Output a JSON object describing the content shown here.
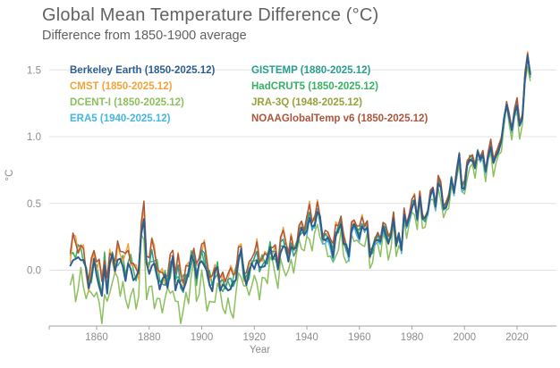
{
  "header": {
    "title": "Global Mean Temperature Difference (°C)",
    "subtitle": "Difference from 1850-1900 average"
  },
  "axes": {
    "xlabel": "Year",
    "ylabel": "°C",
    "ytick_labels": [
      "0.0",
      "0.5",
      "1.0",
      "1.5"
    ],
    "xtick_labels": [
      "1860",
      "1880",
      "1900",
      "1920",
      "1940",
      "1960",
      "1980",
      "2000",
      "2020"
    ]
  },
  "colors": {
    "title_gray": "#636363",
    "tick_gray": "#8c8c8c",
    "axis_line": "#a3a3a3",
    "gridline": "#e3e3e3",
    "background": "#ffffff"
  },
  "chart_data": {
    "type": "line",
    "title": "Global Mean Temperature Difference (°C)",
    "subtitle": "Difference from 1850-1900 average",
    "xlabel": "Year",
    "ylabel": "°C",
    "xlim": [
      1848,
      2028
    ],
    "ylim": [
      -0.42,
      1.68
    ],
    "yticks": [
      0.0,
      0.5,
      1.0,
      1.5
    ],
    "xticks": [
      1860,
      1880,
      1900,
      1920,
      1940,
      1960,
      1980,
      2000,
      2020
    ],
    "grid": "horizontal-only",
    "legend_position": "top-left-inside-two-columns",
    "x_start": 1850,
    "consensus_anomaly": [
      0.05,
      0.12,
      0.08,
      0.09,
      0.1,
      0.06,
      -0.03,
      -0.13,
      -0.05,
      0.06,
      -0.02,
      -0.08,
      -0.2,
      0.03,
      -0.15,
      0.03,
      0.08,
      0.0,
      0.08,
      0.06,
      0.05,
      -0.04,
      0.04,
      0.01,
      -0.05,
      -0.08,
      -0.04,
      0.28,
      0.38,
      0.03,
      0.0,
      0.07,
      0.04,
      -0.03,
      -0.12,
      -0.1,
      -0.07,
      -0.12,
      -0.01,
      0.08,
      -0.12,
      -0.04,
      -0.12,
      -0.14,
      -0.07,
      -0.04,
      0.08,
      0.08,
      -0.07,
      0.03,
      0.1,
      0.06,
      -0.02,
      -0.1,
      -0.14,
      -0.04,
      0.0,
      -0.14,
      -0.12,
      -0.14,
      -0.12,
      -0.12,
      -0.1,
      -0.06,
      0.08,
      0.13,
      -0.04,
      -0.1,
      -0.03,
      0.04,
      0.04,
      0.09,
      0.01,
      0.04,
      0.04,
      0.07,
      0.16,
      0.09,
      0.11,
      0.0,
      0.16,
      0.19,
      0.16,
      0.08,
      0.18,
      0.13,
      0.16,
      0.26,
      0.3,
      0.26,
      0.32,
      0.4,
      0.32,
      0.35,
      0.44,
      0.38,
      0.23,
      0.23,
      0.23,
      0.2,
      0.12,
      0.26,
      0.3,
      0.36,
      0.2,
      0.17,
      0.1,
      0.3,
      0.33,
      0.3,
      0.26,
      0.33,
      0.3,
      0.33,
      0.1,
      0.15,
      0.22,
      0.23,
      0.2,
      0.33,
      0.28,
      0.2,
      0.26,
      0.4,
      0.18,
      0.26,
      0.15,
      0.42,
      0.32,
      0.4,
      0.48,
      0.52,
      0.38,
      0.56,
      0.38,
      0.38,
      0.43,
      0.56,
      0.6,
      0.48,
      0.66,
      0.62,
      0.46,
      0.48,
      0.53,
      0.68,
      0.58,
      0.72,
      0.86,
      0.62,
      0.62,
      0.78,
      0.83,
      0.83,
      0.76,
      0.88,
      0.83,
      0.86,
      0.73,
      0.86,
      0.93,
      0.8,
      0.86,
      0.9,
      0.96,
      1.12,
      1.24,
      1.14,
      1.04,
      1.18,
      1.24,
      1.08,
      1.14,
      1.44,
      1.6,
      1.46
    ],
    "series": [
      {
        "name": "Berkeley Earth",
        "label": "Berkeley Earth (1850-2025.12)",
        "color": "#2e5e8e",
        "start": 1850,
        "bias": 0.0,
        "amp": 0.03,
        "phase": 0.5,
        "z": 8
      },
      {
        "name": "CMST",
        "label": "CMST (1850-2025.12)",
        "color": "#f2a43a",
        "start": 1850,
        "bias": 0.07,
        "amp": 0.08,
        "phase": 2.1,
        "z": 4
      },
      {
        "name": "DCENT-I",
        "label": "DCENT-I (1850-2025.12)",
        "color": "#8cc05e",
        "start": 1850,
        "bias": -0.17,
        "amp": 0.1,
        "phase": 4.0,
        "z": 3
      },
      {
        "name": "ERA5",
        "label": "ERA5 (1940-2025.12)",
        "color": "#47b6e2",
        "start": 1940,
        "bias": -0.03,
        "amp": 0.05,
        "phase": 1.2,
        "z": 6
      },
      {
        "name": "GISTEMP",
        "label": "GISTEMP (1880-2025.12)",
        "color": "#2a9d8f",
        "start": 1880,
        "bias": 0.02,
        "amp": 0.05,
        "phase": 3.0,
        "z": 5
      },
      {
        "name": "HadCRUT5",
        "label": "HadCRUT5 (1850-2025.12)",
        "color": "#38b163",
        "start": 1850,
        "bias": 0.03,
        "amp": 0.05,
        "phase": 5.2,
        "z": 2
      },
      {
        "name": "JRA-3Q",
        "label": "JRA-3Q (1948-2025.12)",
        "color": "#97a13b",
        "start": 1948,
        "bias": -0.01,
        "amp": 0.04,
        "phase": 0.3,
        "z": 1
      },
      {
        "name": "NOAAGlobalTemp v6",
        "label": "NOAAGlobalTemp v6 (1850-2025.12)",
        "color": "#ad553a",
        "start": 1850,
        "bias": 0.09,
        "amp": 0.05,
        "phase": 2.6,
        "z": 7
      }
    ]
  }
}
